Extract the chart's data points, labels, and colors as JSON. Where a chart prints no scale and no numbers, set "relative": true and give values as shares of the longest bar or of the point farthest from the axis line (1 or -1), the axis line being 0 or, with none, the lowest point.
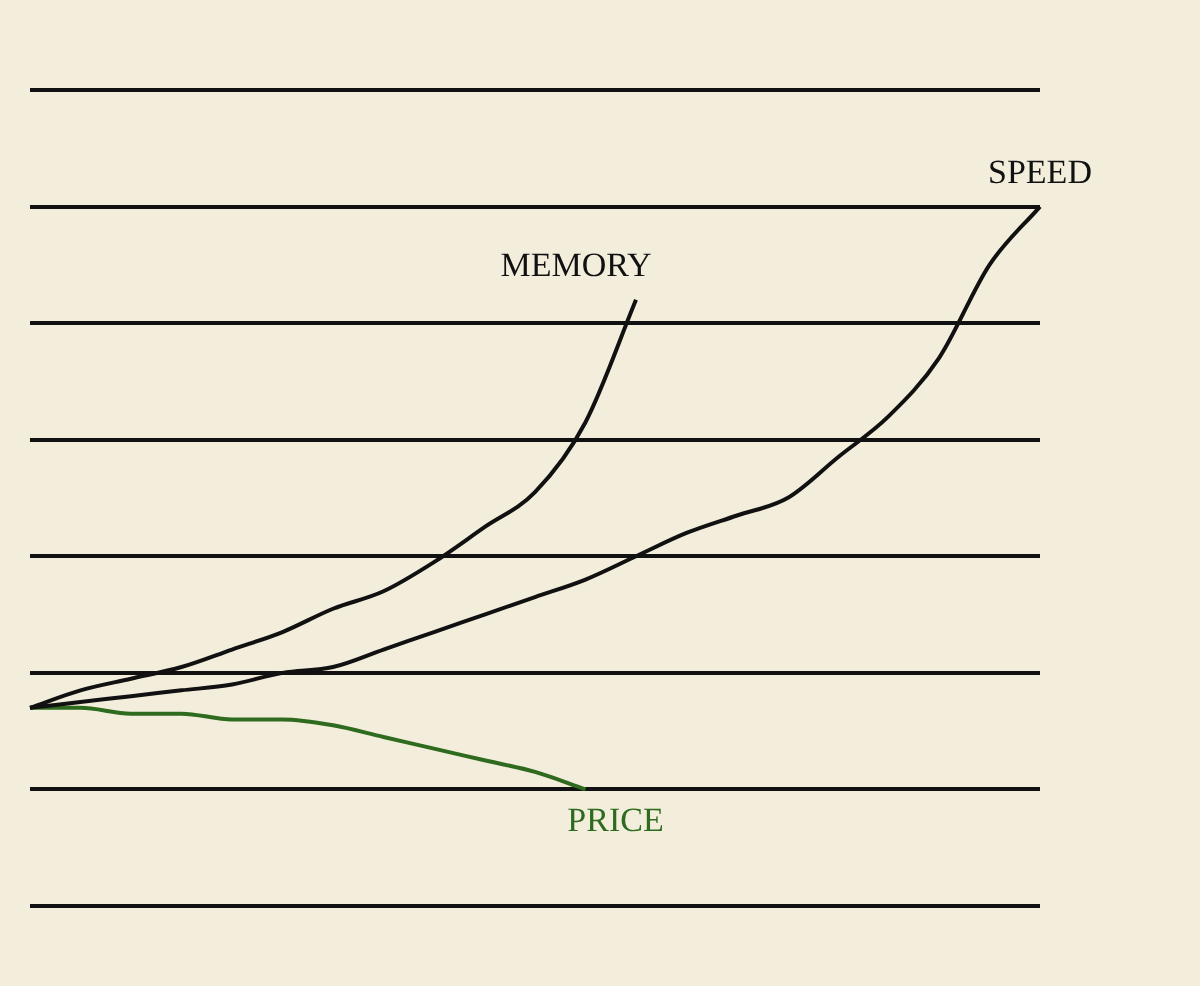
{
  "chart_data": {
    "type": "line",
    "relative": true,
    "grid": "y",
    "legend": false,
    "marker": "none",
    "line_style": "solid",
    "categories": [
      null,
      null,
      null,
      null,
      null,
      null,
      null,
      null,
      null,
      null,
      null,
      null,
      null,
      null,
      null,
      null,
      null,
      null,
      null,
      null,
      null
    ],
    "series": [
      {
        "name": "MEMORY",
        "color": "#111111",
        "values": [
          0.14,
          0.17,
          0.19,
          0.21,
          0.24,
          0.27,
          0.31,
          0.34,
          0.39,
          0.45,
          0.51,
          0.63,
          0.84,
          null,
          null,
          null,
          null,
          null,
          null,
          null,
          null
        ]
      },
      {
        "name": "SPEED",
        "color": "#111111",
        "values": [
          0.14,
          0.15,
          0.16,
          0.17,
          0.18,
          0.2,
          0.21,
          0.24,
          0.27,
          0.3,
          0.33,
          0.36,
          0.4,
          0.44,
          0.47,
          0.5,
          0.57,
          0.64,
          0.74,
          0.9,
          1
        ]
      },
      {
        "name": "PRICE",
        "color": "#2e6b1e",
        "values": [
          0.14,
          0.14,
          0.13,
          0.13,
          0.12,
          0.12,
          0.11,
          0.09,
          0.07,
          0.05,
          0.03,
          0,
          null,
          null,
          null,
          null,
          null,
          null,
          null,
          null,
          null
        ]
      }
    ]
  }
}
